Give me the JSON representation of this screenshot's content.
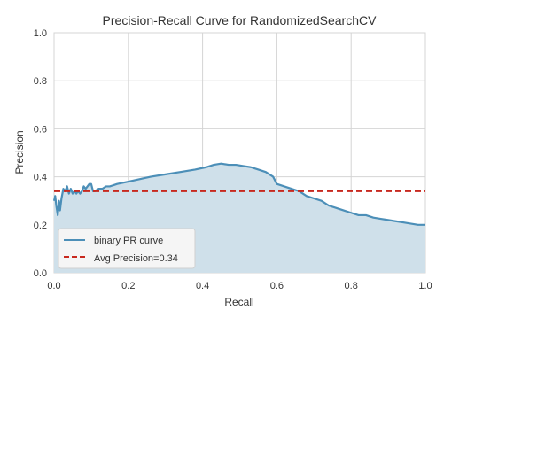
{
  "chart_data": {
    "type": "area",
    "title": "Precision-Recall Curve for RandomizedSearchCV",
    "xlabel": "Recall",
    "ylabel": "Precision",
    "xlim": [
      0.0,
      1.0
    ],
    "ylim": [
      0.0,
      1.0
    ],
    "xticks": [
      "0.0",
      "0.2",
      "0.4",
      "0.6",
      "0.8",
      "1.0"
    ],
    "yticks": [
      "0.0",
      "0.2",
      "0.4",
      "0.6",
      "0.8",
      "1.0"
    ],
    "grid": true,
    "legend_position": "lower-left",
    "series": [
      {
        "name": "binary PR curve",
        "color": "#4c8fb8",
        "fill": "#cfe0ea",
        "x": [
          0.0,
          0.003,
          0.006,
          0.01,
          0.013,
          0.016,
          0.02,
          0.025,
          0.03,
          0.035,
          0.04,
          0.045,
          0.05,
          0.055,
          0.06,
          0.065,
          0.07,
          0.075,
          0.08,
          0.085,
          0.09,
          0.095,
          0.1,
          0.105,
          0.11,
          0.12,
          0.13,
          0.14,
          0.15,
          0.17,
          0.2,
          0.23,
          0.26,
          0.3,
          0.34,
          0.38,
          0.41,
          0.43,
          0.45,
          0.47,
          0.49,
          0.51,
          0.53,
          0.55,
          0.57,
          0.59,
          0.6,
          0.62,
          0.64,
          0.66,
          0.68,
          0.7,
          0.72,
          0.74,
          0.76,
          0.78,
          0.8,
          0.82,
          0.84,
          0.86,
          0.88,
          0.9,
          0.92,
          0.94,
          0.96,
          0.98,
          1.0
        ],
        "y": [
          0.3,
          0.32,
          0.28,
          0.24,
          0.3,
          0.26,
          0.31,
          0.35,
          0.34,
          0.36,
          0.33,
          0.35,
          0.33,
          0.34,
          0.33,
          0.34,
          0.33,
          0.34,
          0.36,
          0.35,
          0.36,
          0.37,
          0.37,
          0.34,
          0.34,
          0.35,
          0.35,
          0.36,
          0.36,
          0.37,
          0.38,
          0.39,
          0.4,
          0.41,
          0.42,
          0.43,
          0.44,
          0.45,
          0.455,
          0.45,
          0.45,
          0.445,
          0.44,
          0.43,
          0.42,
          0.4,
          0.37,
          0.36,
          0.35,
          0.34,
          0.32,
          0.31,
          0.3,
          0.28,
          0.27,
          0.26,
          0.25,
          0.24,
          0.24,
          0.23,
          0.225,
          0.22,
          0.215,
          0.21,
          0.205,
          0.2,
          0.2
        ]
      },
      {
        "name": "Avg Precision=0.34",
        "color": "#c8281e",
        "style": "dashed",
        "x": [
          0.0,
          1.0
        ],
        "y": [
          0.34,
          0.34
        ]
      }
    ]
  }
}
